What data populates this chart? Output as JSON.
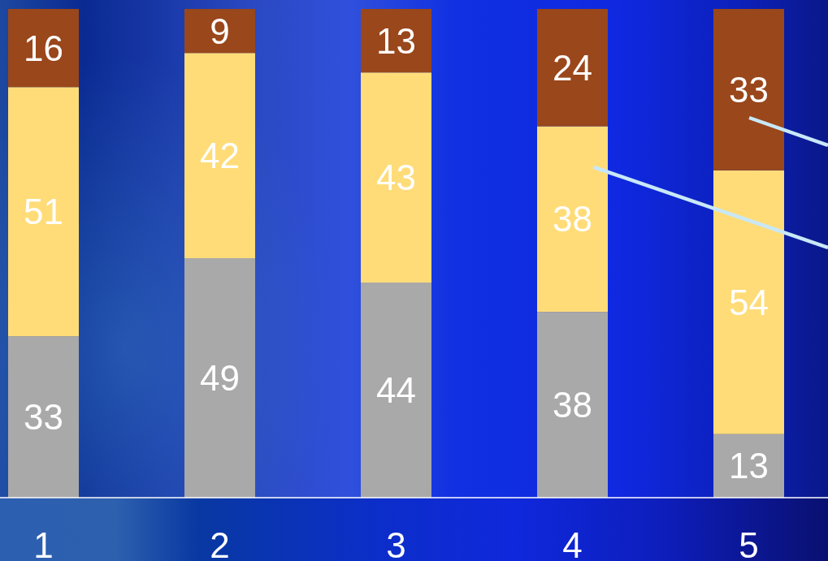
{
  "chart_data": {
    "type": "bar",
    "stacked": true,
    "categories": [
      "1",
      "2",
      "3",
      "4",
      "5"
    ],
    "series": [
      {
        "color": "#a9a9a9",
        "values": [
          33,
          49,
          44,
          38,
          13
        ]
      },
      {
        "color": "#ffdc78",
        "values": [
          51,
          42,
          43,
          38,
          54
        ]
      },
      {
        "color": "#99471b",
        "values": [
          16,
          9,
          13,
          24,
          33
        ]
      }
    ],
    "ylim": [
      0,
      100
    ],
    "data_labels": true,
    "tick_labels": "x"
  }
}
